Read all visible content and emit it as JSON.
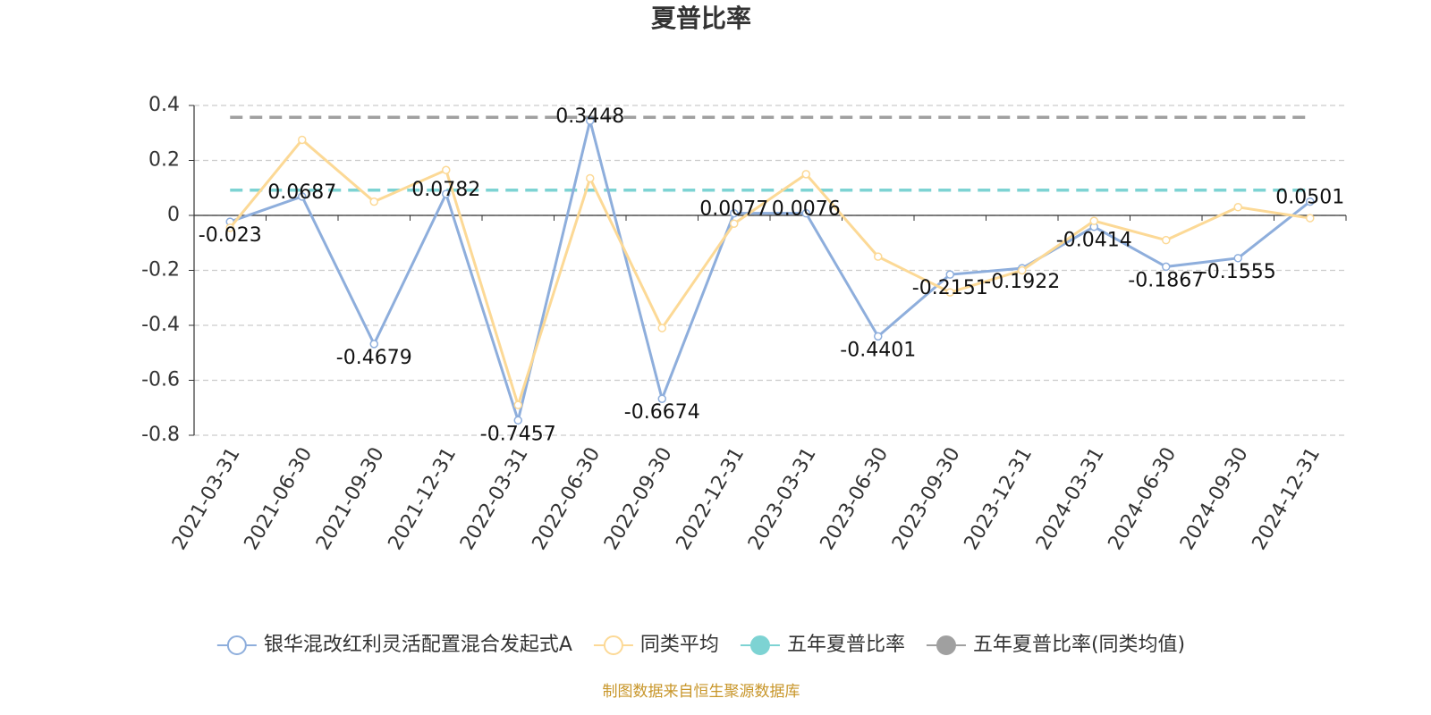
{
  "chart_data": {
    "type": "line",
    "title": "夏普比率",
    "categories": [
      "2021-03-31",
      "2021-06-30",
      "2021-09-30",
      "2021-12-31",
      "2022-03-31",
      "2022-06-30",
      "2022-09-30",
      "2022-12-31",
      "2023-03-31",
      "2023-06-30",
      "2023-09-30",
      "2023-12-31",
      "2024-03-31",
      "2024-06-30",
      "2024-09-30",
      "2024-12-31"
    ],
    "series": [
      {
        "name": "银华混改红利灵活配置混合发起式A",
        "color": "#8eaedc",
        "marker": "hollow",
        "data_labels": true,
        "values": [
          -0.023,
          0.0687,
          -0.4679,
          0.0782,
          -0.7457,
          0.3448,
          -0.6674,
          0.0077,
          0.0076,
          -0.4401,
          -0.2151,
          -0.1922,
          -0.0414,
          -0.1867,
          -0.1555,
          0.0501
        ]
      },
      {
        "name": "同类平均",
        "color": "#fcd996",
        "marker": "hollow",
        "data_labels": false,
        "values": [
          -0.045,
          0.275,
          0.05,
          0.165,
          -0.69,
          0.135,
          -0.41,
          -0.03,
          0.15,
          -0.15,
          -0.28,
          -0.2,
          -0.02,
          -0.09,
          0.03,
          -0.01
        ]
      },
      {
        "name": "五年夏普比率",
        "color": "#7dd3d3",
        "marker": "filled",
        "reference": true,
        "value": 0.092
      },
      {
        "name": "五年夏普比率(同类均值)",
        "color": "#a0a0a0",
        "marker": "filled",
        "reference": true,
        "value": 0.357
      }
    ],
    "ylim": [
      -0.8,
      0.4
    ],
    "yticks": [
      0.4,
      0.2,
      0,
      -0.2,
      -0.4,
      -0.6,
      -0.8
    ],
    "grid": true,
    "legend": "bottom",
    "source": "制图数据来自恒生聚源数据库"
  }
}
